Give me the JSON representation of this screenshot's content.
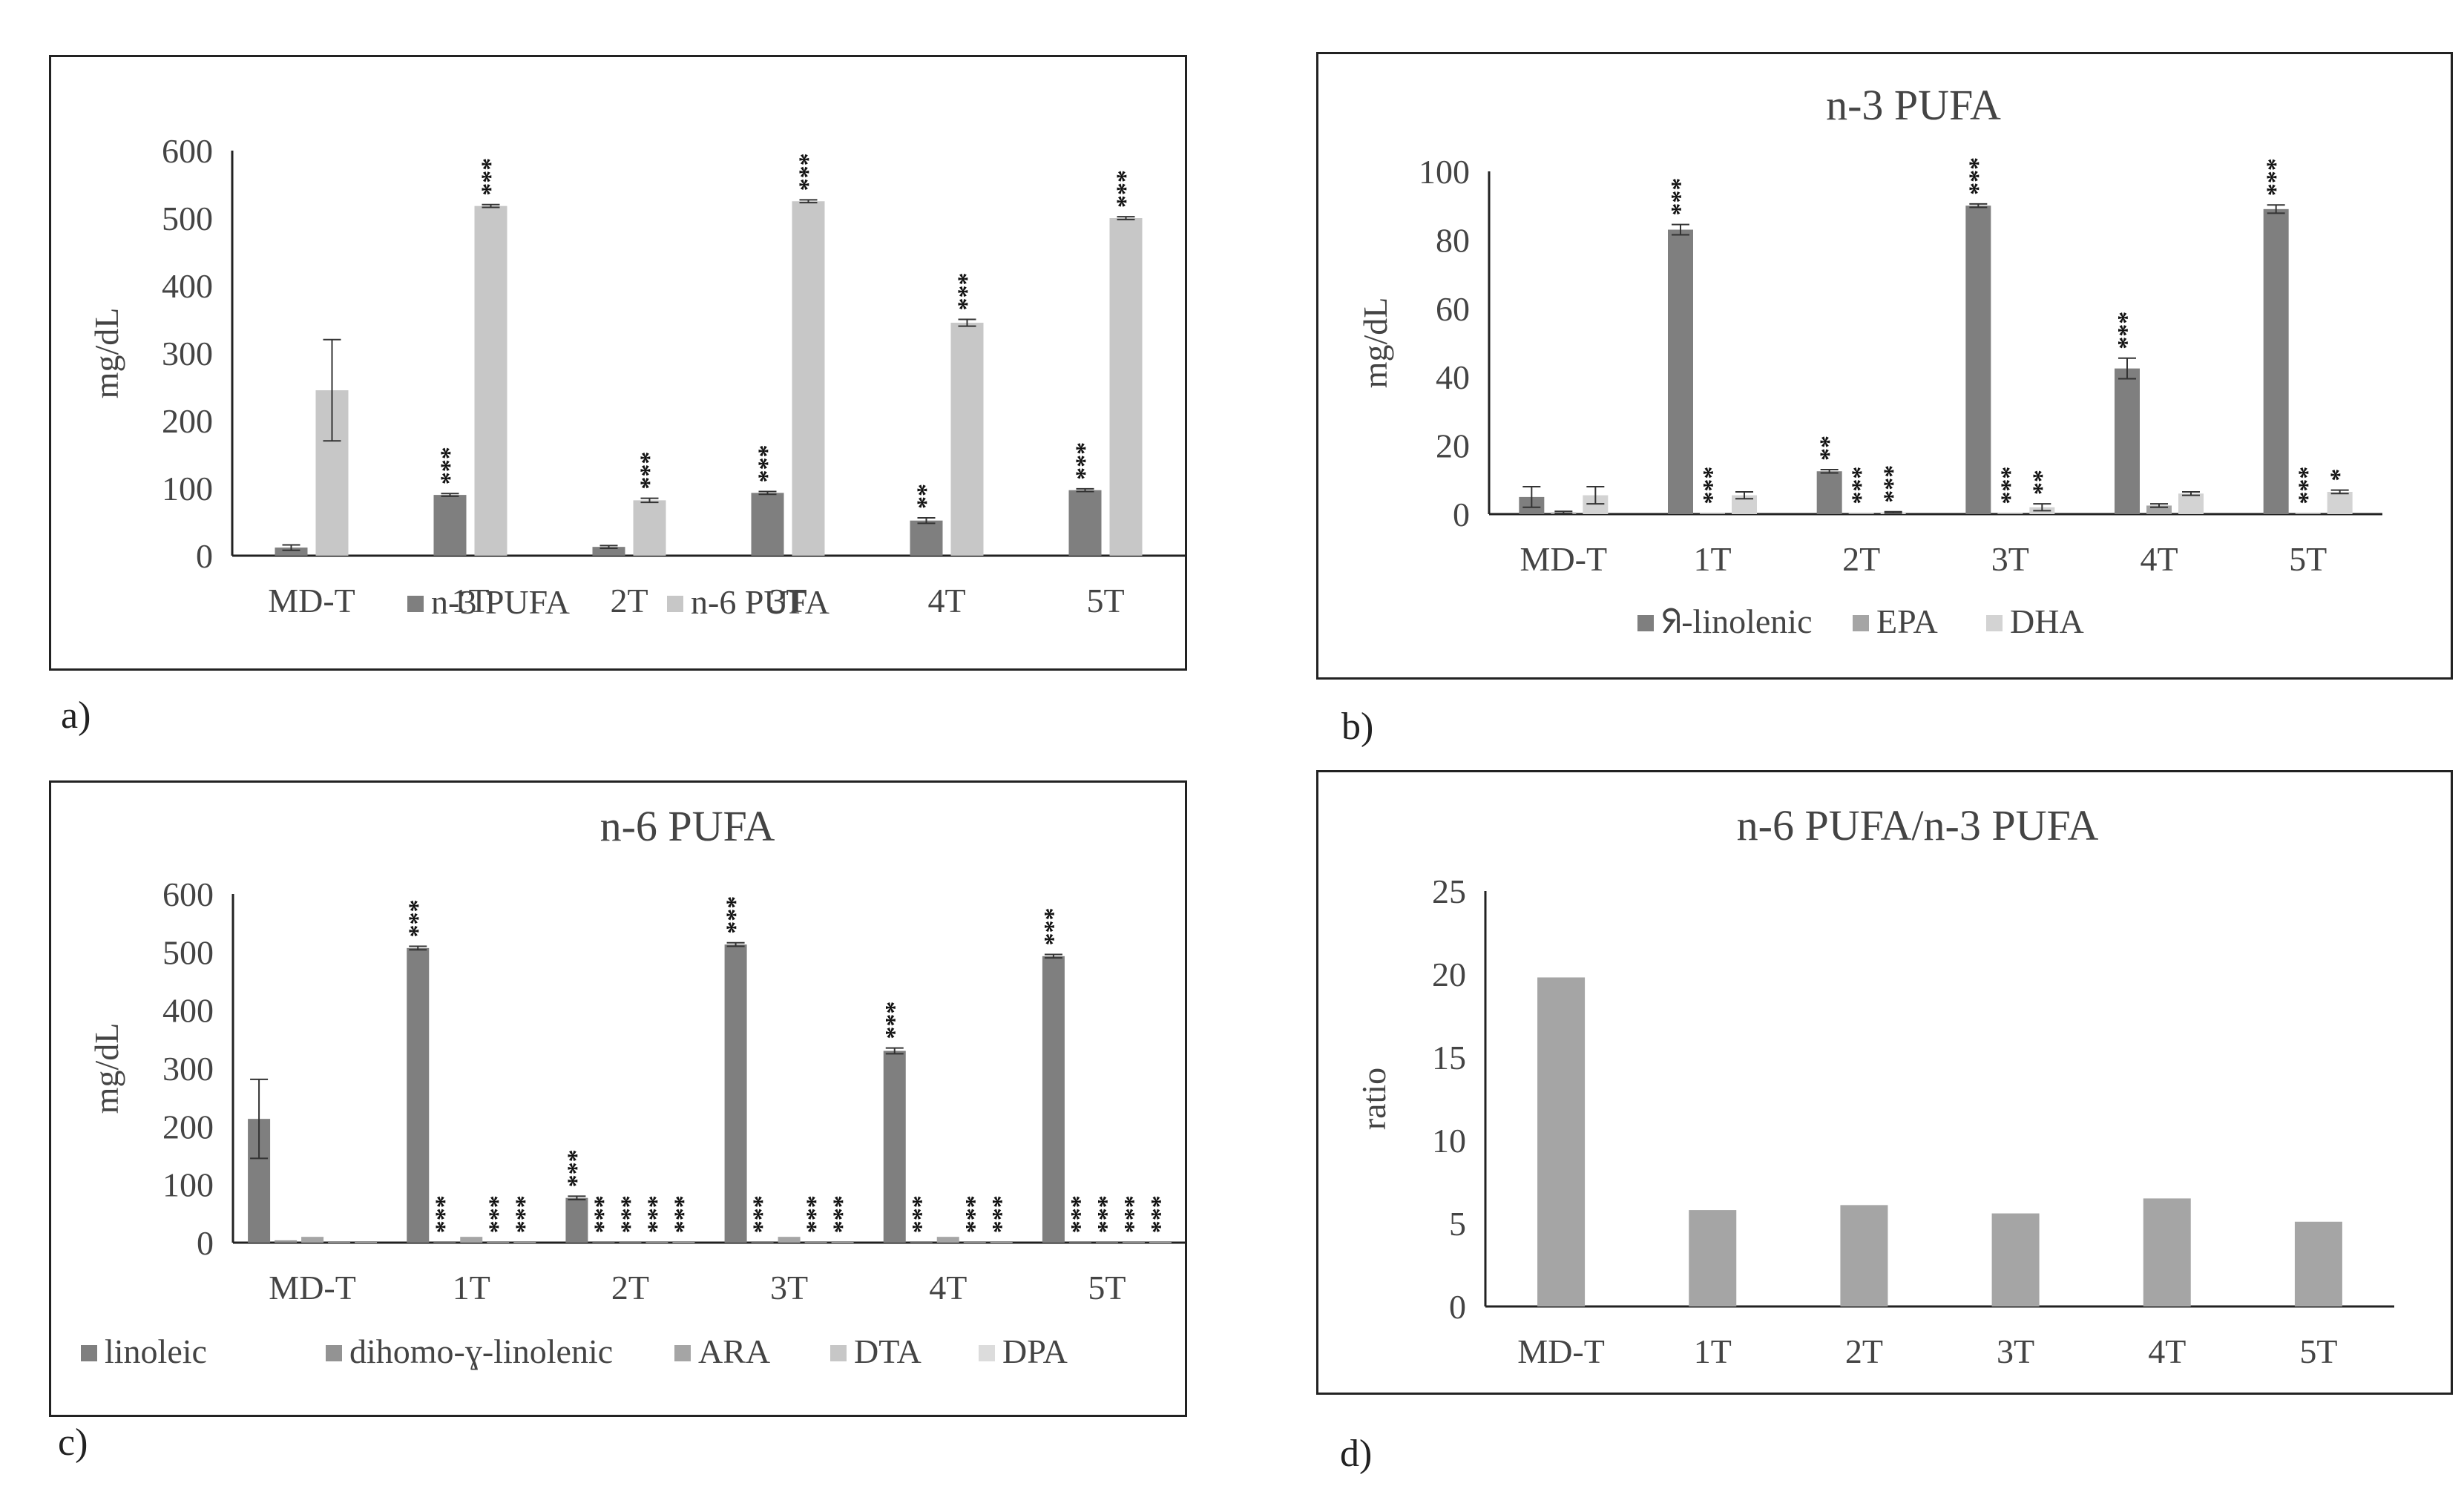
{
  "panel_labels": {
    "a": "a)",
    "b": "b)",
    "c": "c)",
    "d": "d)"
  },
  "colors": {
    "dark": "#7f7f7f",
    "mid": "#a5a5a5",
    "light": "#c7c7c7",
    "lighter": "#d3d3d3",
    "lightest": "#dcdcdc"
  },
  "chart_data": [
    {
      "id": "a",
      "type": "bar",
      "title": "",
      "xlabel": "",
      "ylabel": "mg/dL",
      "ylim": [
        0,
        600
      ],
      "yticks": [
        "0",
        "100",
        "200",
        "300",
        "400",
        "500",
        "600"
      ],
      "categories": [
        "MD-T",
        "1T",
        "2T",
        "3T",
        "4T",
        "5T"
      ],
      "series": [
        {
          "name": "n-3 PUFA",
          "color": "#7f7f7f",
          "values": [
            12,
            90,
            13,
            93,
            52,
            97
          ],
          "errors": [
            4,
            2,
            2,
            2,
            4,
            2
          ],
          "sig": [
            "",
            "***",
            "",
            "***",
            "**",
            "***"
          ]
        },
        {
          "name": "n-6 PUFA",
          "color": "#c7c7c7",
          "values": [
            245,
            518,
            82,
            525,
            345,
            500
          ],
          "errors": [
            75,
            2,
            3,
            2,
            5,
            2
          ],
          "sig": [
            "",
            "***",
            "***",
            "***",
            "***",
            "***"
          ]
        }
      ]
    },
    {
      "id": "b",
      "type": "bar",
      "title": "n-3 PUFA",
      "xlabel": "",
      "ylabel": "mg/dL",
      "ylim": [
        0,
        100
      ],
      "yticks": [
        "0",
        "20",
        "40",
        "60",
        "80",
        "100"
      ],
      "categories": [
        "MD-T",
        "1T",
        "2T",
        "3T",
        "4T",
        "5T"
      ],
      "series": [
        {
          "name": "ᖆ-linolenic",
          "color": "#7f7f7f",
          "values": [
            5,
            83,
            12.5,
            90,
            42.5,
            89
          ],
          "errors": [
            3,
            1.5,
            0.5,
            0.5,
            3,
            1.2
          ],
          "sig": [
            "",
            "***",
            "**",
            "***",
            "***",
            "***"
          ]
        },
        {
          "name": "EPA",
          "color": "#a5a5a5",
          "values": [
            0.5,
            0.3,
            0.3,
            0.3,
            2.5,
            0.3
          ],
          "errors": [
            0.3,
            0,
            0,
            0,
            0.5,
            0
          ],
          "sig": [
            "",
            "***",
            "***",
            "***",
            "",
            "***"
          ]
        },
        {
          "name": "DHA",
          "color": "#d3d3d3",
          "values": [
            5.5,
            5.5,
            0.5,
            2,
            6,
            6.5
          ],
          "errors": [
            2.5,
            1,
            0.2,
            1,
            0.5,
            0.5
          ],
          "sig": [
            "",
            "",
            "***",
            "**",
            "",
            "*"
          ]
        }
      ]
    },
    {
      "id": "c",
      "type": "bar",
      "title": "n-6 PUFA",
      "xlabel": "",
      "ylabel": "mg/dL",
      "ylim": [
        0,
        600
      ],
      "yticks": [
        "0",
        "100",
        "200",
        "300",
        "400",
        "500",
        "600"
      ],
      "categories": [
        "MD-T",
        "1T",
        "2T",
        "3T",
        "4T",
        "5T"
      ],
      "series": [
        {
          "name": "linoleic",
          "color": "#7f7f7f",
          "values": [
            213,
            507,
            77,
            513,
            330,
            493
          ],
          "errors": [
            68,
            3,
            3,
            3,
            5,
            3
          ],
          "sig": [
            "",
            "***",
            "***",
            "***",
            "***",
            "***"
          ]
        },
        {
          "name": "dihomo-ɣ-linolenic",
          "color": "#939393",
          "values": [
            4,
            1,
            1,
            1,
            1,
            1
          ],
          "errors": [
            0,
            0,
            0,
            0,
            0,
            0
          ],
          "sig": [
            "",
            "***",
            "***",
            "***",
            "***",
            "***"
          ]
        },
        {
          "name": "ARA",
          "color": "#a5a5a5",
          "values": [
            10,
            10,
            1,
            10,
            10,
            1
          ],
          "errors": [
            0,
            0,
            0,
            0,
            0,
            0
          ],
          "sig": [
            "",
            "",
            "***",
            "",
            "",
            "***"
          ]
        },
        {
          "name": "DTA",
          "color": "#c7c7c7",
          "values": [
            1,
            1,
            1,
            1,
            1,
            1
          ],
          "errors": [
            0,
            0,
            0,
            0,
            0,
            0
          ],
          "sig": [
            "",
            "***",
            "***",
            "***",
            "***",
            "***"
          ]
        },
        {
          "name": "DPA",
          "color": "#dcdcdc",
          "values": [
            1,
            1,
            1,
            1,
            1,
            1
          ],
          "errors": [
            0,
            0,
            0,
            0,
            0,
            0
          ],
          "sig": [
            "",
            "***",
            "***",
            "***",
            "***",
            "***"
          ]
        }
      ]
    },
    {
      "id": "d",
      "type": "bar",
      "title": "n-6 PUFA/n-3 PUFA",
      "xlabel": "",
      "ylabel": "ratio",
      "ylim": [
        0,
        25
      ],
      "yticks": [
        "0",
        "5",
        "10",
        "15",
        "20",
        "25"
      ],
      "categories": [
        "MD-T",
        "1T",
        "2T",
        "3T",
        "4T",
        "5T"
      ],
      "series": [
        {
          "name": "",
          "color": "#a5a5a5",
          "values": [
            19.8,
            5.8,
            6.1,
            5.6,
            6.5,
            5.1
          ],
          "errors": [
            0,
            0,
            0,
            0,
            0,
            0
          ],
          "sig": [
            "",
            "",
            "",
            "",
            "",
            ""
          ]
        }
      ]
    }
  ]
}
